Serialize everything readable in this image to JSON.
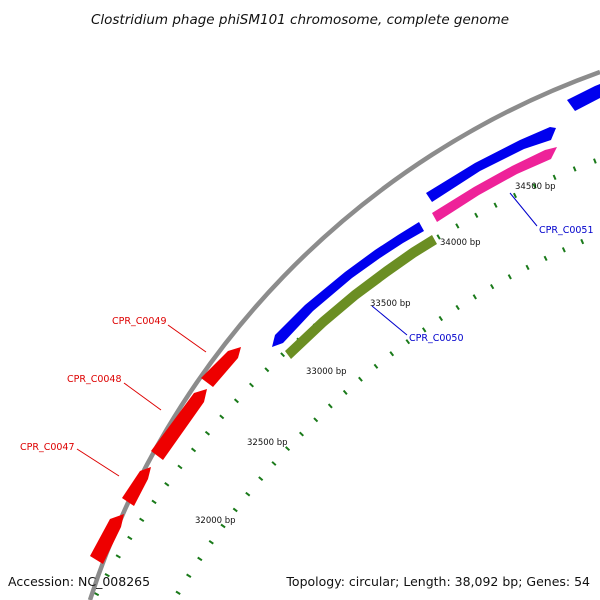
{
  "title": "Clostridium phage phiSM101 chromosome, complete genome",
  "footer": {
    "accession": "Accession: NC_008265",
    "summary": "Topology: circular; Length: 38,092 bp; Genes: 54"
  },
  "colors": {
    "backbone": "#8c8c8c",
    "tick": "#1a7a1a",
    "forward_gene": "#0000ee",
    "reverse_gene": "#ee0000",
    "orf_green": "#6b8e23",
    "orf_pink": "#ee2299",
    "forward_label": "#0000cc",
    "reverse_label": "#dd0000"
  },
  "ruler": {
    "tick_labels": [
      {
        "bp": 32000,
        "text": "32000 bp"
      },
      {
        "bp": 32500,
        "text": "32500 bp"
      },
      {
        "bp": 33000,
        "text": "33000 bp"
      },
      {
        "bp": 33500,
        "text": "33500 bp"
      },
      {
        "bp": 34000,
        "text": "34000 bp"
      },
      {
        "bp": 34500,
        "text": "34500 bp"
      }
    ]
  },
  "gene_labels": [
    {
      "name": "CPR_C0047",
      "color_key": "reverse_label"
    },
    {
      "name": "CPR_C0048",
      "color_key": "reverse_label"
    },
    {
      "name": "CPR_C0049",
      "color_key": "reverse_label"
    },
    {
      "name": "CPR_C0050",
      "color_key": "forward_label"
    },
    {
      "name": "CPR_C0051",
      "color_key": "forward_label"
    }
  ]
}
